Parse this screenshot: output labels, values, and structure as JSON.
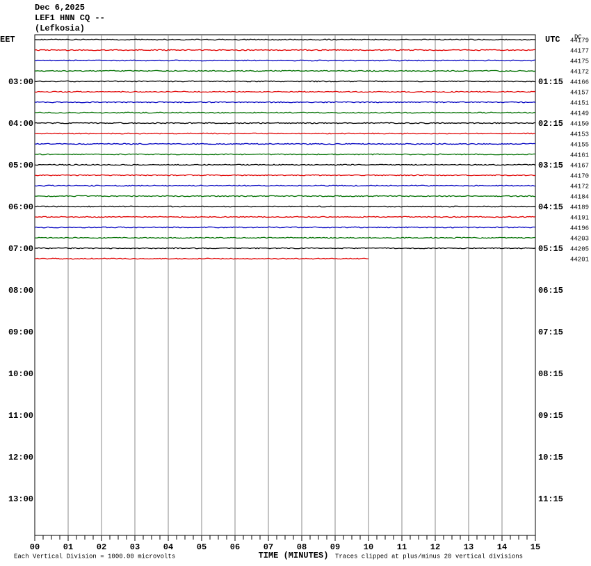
{
  "header": {
    "date": "Dec 6,2025",
    "station": "LEF1 HNN CQ --",
    "location": "(Lefkosia)"
  },
  "left_label": "EET",
  "right_label": "UTC",
  "dc_label": "DC",
  "left_hours": [
    "03:00",
    "04:00",
    "05:00",
    "06:00",
    "07:00",
    "08:00",
    "09:00",
    "10:00",
    "11:00",
    "12:00",
    "13:00"
  ],
  "right_hours": [
    "01:15",
    "02:15",
    "03:15",
    "04:15",
    "05:15",
    "06:15",
    "07:15",
    "08:15",
    "09:15",
    "10:15",
    "11:15"
  ],
  "dc_values": [
    44179,
    44177,
    44175,
    44172,
    44166,
    44157,
    44151,
    44149,
    44150,
    44153,
    44155,
    44161,
    44167,
    44170,
    44172,
    44184,
    44189,
    44191,
    44196,
    44203,
    44205,
    44201
  ],
  "trace_colors": [
    "#000000",
    "#e00000",
    "#0000c0",
    "#007000"
  ],
  "trace_minutes": [
    15,
    15,
    15,
    15,
    15,
    15,
    15,
    15,
    15,
    15,
    15,
    15,
    15,
    15,
    15,
    15,
    15,
    15,
    15,
    15,
    15,
    10
  ],
  "x_ticks": [
    "00",
    "01",
    "02",
    "03",
    "04",
    "05",
    "06",
    "07",
    "08",
    "09",
    "10",
    "11",
    "12",
    "13",
    "14",
    "15"
  ],
  "x_label": "TIME (MINUTES)",
  "footer_left": "Each Vertical Division = 1000.00 microvolts",
  "footer_right": "Traces clipped at plus/minus 20 vertical divisions"
}
